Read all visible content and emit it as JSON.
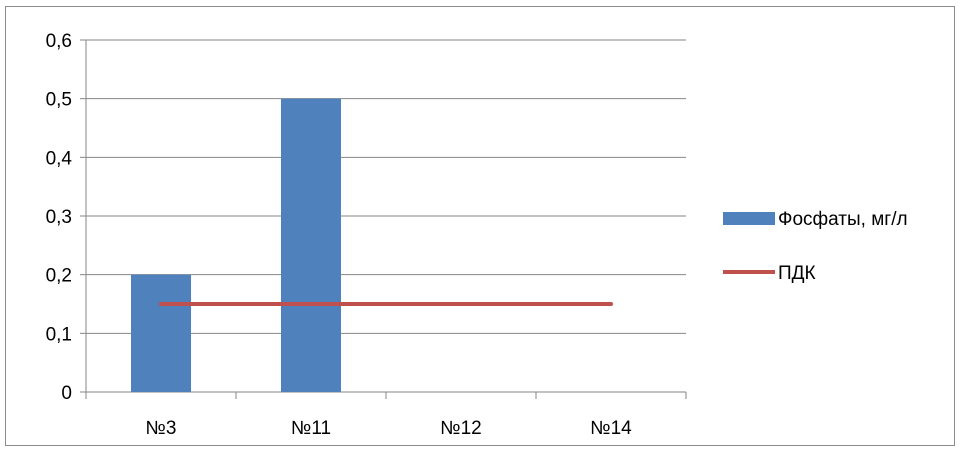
{
  "chart_data": {
    "type": "bar",
    "categories": [
      "№3",
      "№11",
      "№12",
      "№14"
    ],
    "series": [
      {
        "name": "Фосфаты, мг/л",
        "type": "bar",
        "values": [
          0.2,
          0.5,
          0,
          0
        ],
        "color": "#4f81bd"
      },
      {
        "name": "ПДК",
        "type": "line",
        "values": [
          0.15,
          0.15,
          0.15,
          0.15
        ],
        "color": "#c0504d"
      }
    ],
    "y_ticks": [
      "0",
      "0,1",
      "0,2",
      "0,3",
      "0,4",
      "0,5",
      "0,6"
    ],
    "ylim": [
      0,
      0.6
    ],
    "grid": true,
    "legend_position": "right"
  }
}
